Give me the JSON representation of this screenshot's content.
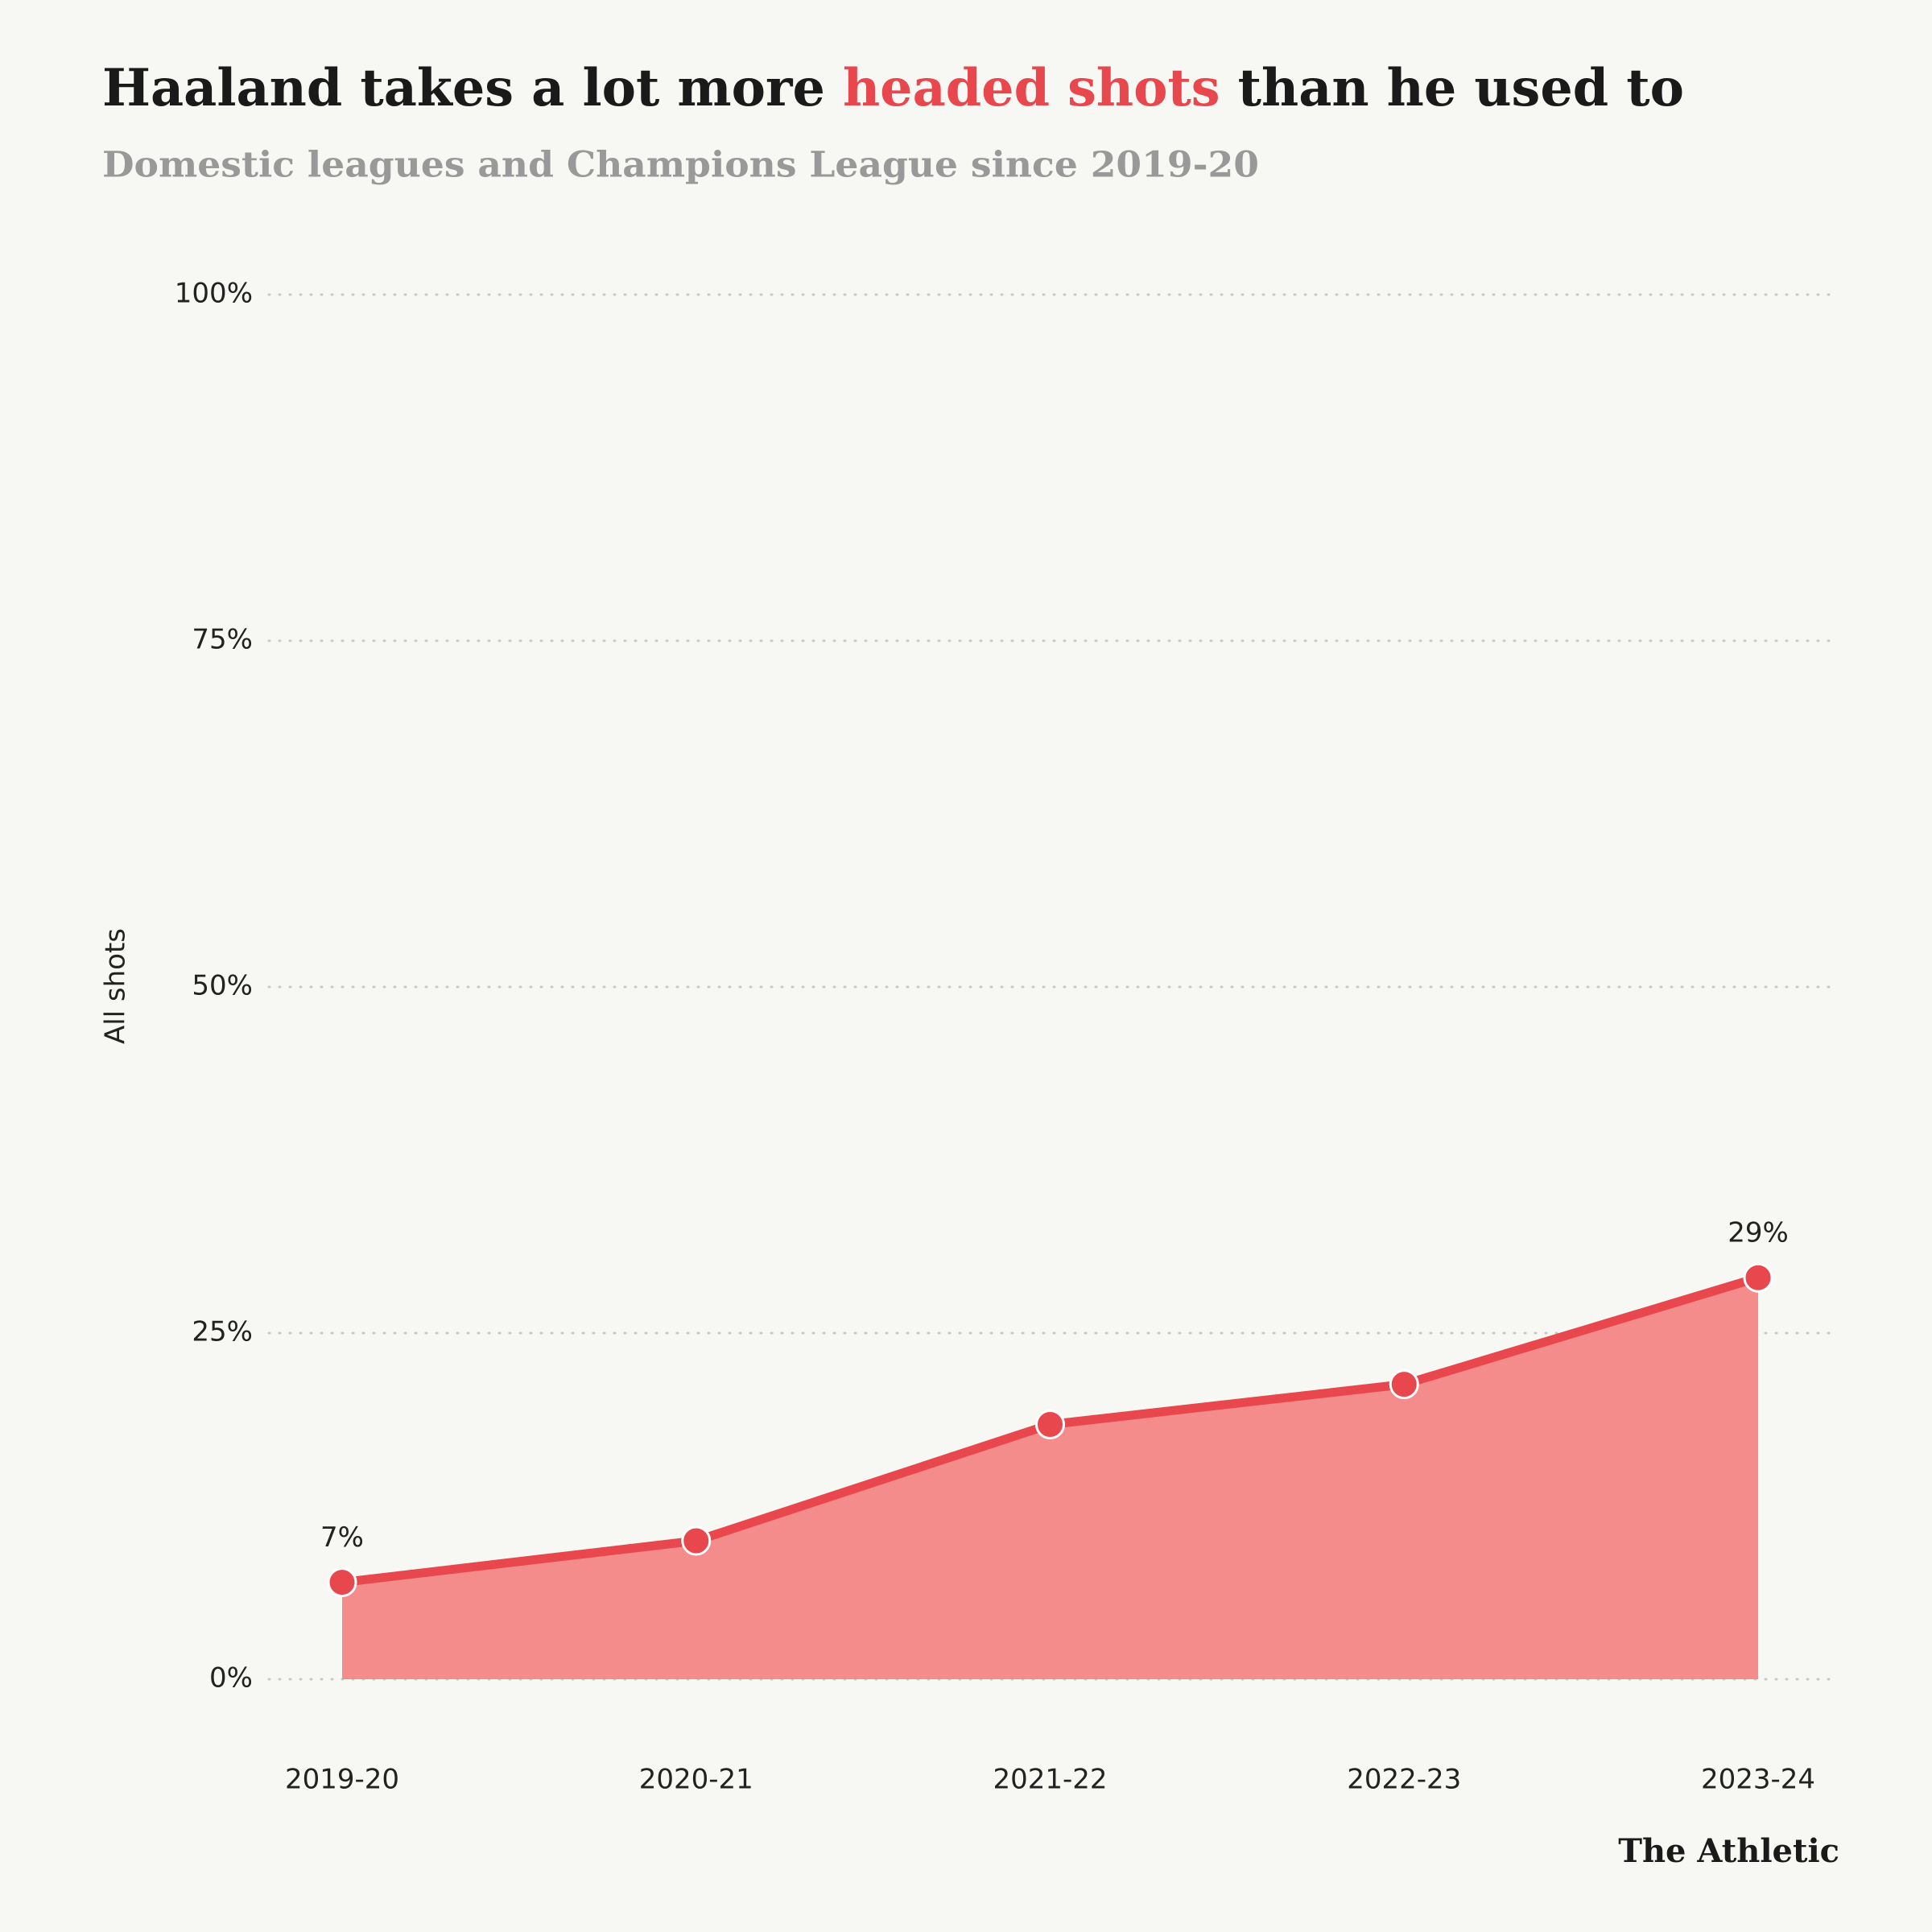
{
  "chart_data": {
    "type": "area",
    "title": {
      "start": "Haaland takes a lot more ",
      "highlight": "headed shots",
      "end": " than he used to"
    },
    "subtitle": "Domestic leagues and Champions League since 2019-20",
    "ylabel": "All shots",
    "source": "The Athletic",
    "categories": [
      "2019-20",
      "2020-21",
      "2021-22",
      "2022-23",
      "2023-24"
    ],
    "series": [
      {
        "name": "All shots",
        "color": "#e8474d",
        "fill": "#f48c8c",
        "values": [
          7,
          10,
          18.4,
          21.3,
          29
        ],
        "value_labels": [
          "7%",
          null,
          null,
          null,
          "29%"
        ]
      }
    ],
    "ylim": [
      0,
      100
    ],
    "yticks": [
      {
        "value": 0,
        "label": "0%"
      },
      {
        "value": 25,
        "label": "25%"
      },
      {
        "value": 50,
        "label": "50%"
      },
      {
        "value": 75,
        "label": "75%"
      },
      {
        "value": 100,
        "label": "100%"
      }
    ],
    "grid": true
  }
}
